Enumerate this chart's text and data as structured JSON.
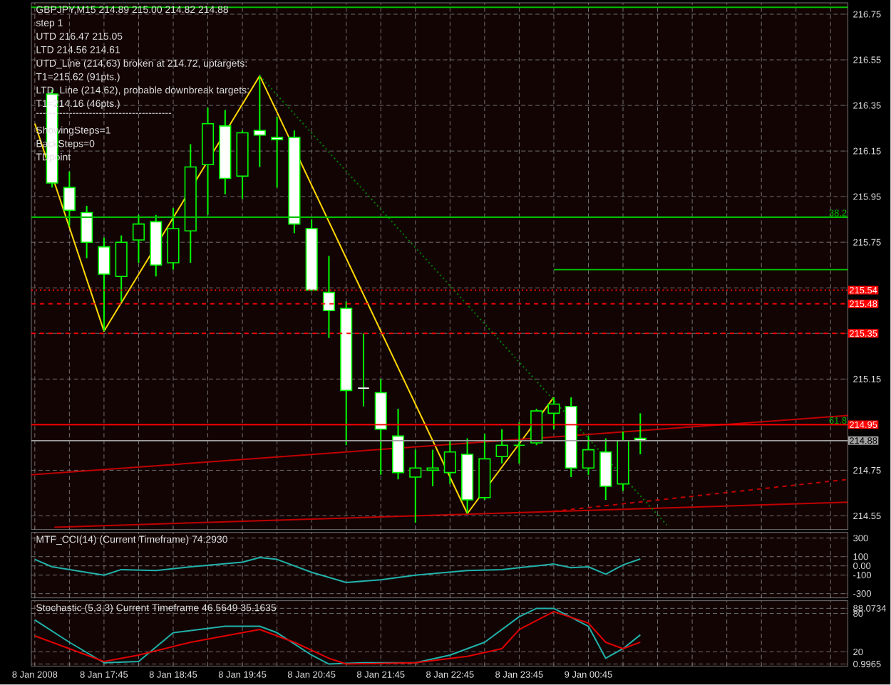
{
  "chart_data": [
    {
      "type": "candlestick",
      "title": "GBPJPY,M15  214.89 215.00 214.82 214.88",
      "annotations": [
        "step 1",
        "UTD 216.47  215.05",
        "LTD  214.56  214.61",
        "UTD_Line (214.63) broken at 214.72, uptargets:",
        "T1=215.62 (91pts.)",
        "LTD_Line (214.62), probable downbreak targets:",
        "T1=214.16 (46pts.)",
        "-----------------------------------------",
        "ShowingSteps=1",
        "BackSteps=0",
        "TDpoint",
        {
          "text": "38.2",
          "x": "2008-01-09T04:30",
          "y": 215.86
        },
        {
          "text": "61.8",
          "x": "2008-01-09T04:30",
          "y": 214.95
        }
      ],
      "x": [
        "2008-01-08T17:00",
        "2008-01-08T17:15",
        "2008-01-08T17:30",
        "2008-01-08T17:45",
        "2008-01-08T18:00",
        "2008-01-08T18:15",
        "2008-01-08T18:30",
        "2008-01-08T18:45",
        "2008-01-08T19:00",
        "2008-01-08T19:15",
        "2008-01-08T19:30",
        "2008-01-08T19:45",
        "2008-01-08T20:00",
        "2008-01-08T20:15",
        "2008-01-08T20:30",
        "2008-01-08T20:45",
        "2008-01-08T21:00",
        "2008-01-08T21:15",
        "2008-01-08T21:30",
        "2008-01-08T21:45",
        "2008-01-08T22:00",
        "2008-01-08T22:15",
        "2008-01-08T22:30",
        "2008-01-08T22:45",
        "2008-01-08T23:00",
        "2008-01-08T23:15",
        "2008-01-08T23:30",
        "2008-01-08T23:45",
        "2008-01-09T00:00",
        "2008-01-09T00:15",
        "2008-01-09T00:30",
        "2008-01-09T00:45",
        "2008-01-09T01:00",
        "2008-01-09T01:15",
        "2008-01-09T01:30"
      ],
      "ohlc": [
        [
          216.4,
          216.42,
          215.99,
          216.01
        ],
        [
          215.99,
          216.06,
          215.82,
          215.89
        ],
        [
          215.88,
          215.91,
          215.68,
          215.75
        ],
        [
          215.73,
          215.77,
          215.36,
          215.61
        ],
        [
          215.6,
          215.78,
          215.49,
          215.75
        ],
        [
          215.76,
          215.87,
          215.66,
          215.83
        ],
        [
          215.84,
          215.87,
          215.6,
          215.65
        ],
        [
          215.66,
          215.9,
          215.63,
          215.81
        ],
        [
          215.8,
          216.18,
          215.66,
          216.08
        ],
        [
          216.09,
          216.34,
          215.87,
          216.27
        ],
        [
          216.26,
          216.33,
          215.96,
          216.03
        ],
        [
          216.04,
          216.24,
          215.94,
          216.23
        ],
        [
          216.24,
          216.48,
          216.08,
          216.22
        ],
        [
          216.21,
          216.3,
          215.99,
          216.2
        ],
        [
          216.21,
          216.24,
          215.79,
          215.83
        ],
        [
          215.81,
          215.85,
          215.54,
          215.54
        ],
        [
          215.53,
          215.69,
          215.33,
          215.45
        ],
        [
          215.46,
          215.49,
          214.86,
          215.1
        ],
        [
          215.11,
          215.35,
          215.03,
          215.11
        ],
        [
          215.09,
          215.15,
          214.73,
          214.93
        ],
        [
          214.9,
          215.02,
          214.71,
          214.74
        ],
        [
          214.72,
          214.84,
          214.52,
          214.76
        ],
        [
          214.75,
          214.84,
          214.68,
          214.76
        ],
        [
          214.74,
          214.88,
          214.69,
          214.83
        ],
        [
          214.82,
          214.89,
          214.56,
          214.62
        ],
        [
          214.63,
          214.91,
          214.62,
          214.8
        ],
        [
          214.81,
          214.93,
          214.78,
          214.86
        ],
        [
          214.86,
          214.96,
          214.78,
          214.86
        ],
        [
          214.87,
          215.02,
          214.86,
          215.01
        ],
        [
          215.0,
          215.07,
          214.93,
          215.04
        ],
        [
          215.03,
          215.07,
          214.72,
          214.76
        ],
        [
          214.76,
          214.9,
          214.73,
          214.84
        ],
        [
          214.83,
          214.89,
          214.62,
          214.68
        ],
        [
          214.69,
          214.92,
          214.66,
          214.88
        ],
        [
          214.89,
          215.0,
          214.82,
          214.88
        ]
      ],
      "color": "#00ff00",
      "colors": [
        "#ffffff",
        "#ffffff",
        "#ffffff",
        "#ffffff",
        "#00ff00",
        "#00ff00",
        "#ffffff",
        "#00ff00",
        "#00ff00",
        "#00ff00",
        "#ffffff",
        "#00ff00",
        "#ffffff",
        "#ffffff",
        "#ffffff",
        "#ffffff",
        "#ffffff",
        "#ffffff",
        "#ffffff",
        "#ffffff",
        "#ffffff",
        "#00ff00",
        "#00ff00",
        "#00ff00",
        "#ffffff",
        "#00ff00",
        "#00ff00",
        "#00ff00",
        "#00ff00",
        "#00ff00",
        "#ffffff",
        "#00ff00",
        "#ffffff",
        "#00ff00",
        "#ffffff"
      ],
      "series": [
        {
          "type": "line",
          "color": "#ffd700",
          "x": [
            "2008-01-08T16:45",
            "2008-01-08T17:45",
            "2008-01-08T20:00",
            "2008-01-08T23:00",
            "2008-01-09T00:15"
          ],
          "values": [
            216.27,
            215.36,
            216.48,
            214.56,
            215.07
          ]
        },
        {
          "type": "line",
          "color": "#c00000",
          "x": [
            "2008-01-08T16:42",
            "2008-01-09T04:30"
          ],
          "values": [
            214.73,
            214.99
          ]
        },
        {
          "type": "line",
          "color": "#c00000",
          "x": [
            "2008-01-08T17:02",
            "2008-01-09T04:30"
          ],
          "values": [
            214.5,
            214.61
          ]
        },
        {
          "type": "line",
          "color": "#c00000",
          "line_style": "dashed",
          "x": [
            "2008-01-09T00:15",
            "2008-01-09T04:30"
          ],
          "values": [
            214.57,
            214.71
          ]
        },
        {
          "type": "line",
          "color": "#00c000",
          "x": [
            "2008-01-09T00:15",
            "2008-01-09T04:30"
          ],
          "values": [
            215.63,
            215.63
          ]
        },
        {
          "type": "line",
          "color": "#008000",
          "line_style": "dotted",
          "x": [
            "2008-01-08T20:00",
            "2008-01-09T01:53"
          ],
          "values": [
            216.48,
            214.51
          ]
        }
      ],
      "ref_lines": [
        {
          "axis": "y",
          "value": 216.78,
          "color": "#00c000",
          "line_style": "solid"
        },
        {
          "axis": "y",
          "value": 215.86,
          "color": "#00c000",
          "line_style": "solid"
        },
        {
          "axis": "y",
          "value": 215.54,
          "label": "215.54",
          "color": "#ff0000",
          "line_style": "dotted"
        },
        {
          "axis": "y",
          "value": 215.48,
          "label": "215.48",
          "color": "#ff0000",
          "line_style": "dashed"
        },
        {
          "axis": "y",
          "value": 215.35,
          "label": "215.35",
          "color": "#ff0000",
          "line_style": "dashed"
        },
        {
          "axis": "y",
          "value": 214.95,
          "label": "214.95",
          "color": "#ff0000",
          "line_style": "solid"
        },
        {
          "axis": "y",
          "value": 214.88,
          "label": "214.88",
          "color": "#a0a0a0",
          "line_style": "solid"
        }
      ],
      "xlim": [
        "2008-01-08T16:42",
        "2008-01-09T04:30"
      ],
      "xticks": [
        {
          "value": "2008-01-08T16:45",
          "label": null
        },
        {
          "value": "2008-01-08T17:15",
          "label": null
        },
        {
          "value": "2008-01-08T17:45",
          "label": null
        },
        {
          "value": "2008-01-08T18:15",
          "label": null
        },
        {
          "value": "2008-01-08T18:45",
          "label": null
        },
        {
          "value": "2008-01-08T19:15",
          "label": null
        },
        {
          "value": "2008-01-08T19:45",
          "label": null
        },
        {
          "value": "2008-01-08T20:15",
          "label": null
        },
        {
          "value": "2008-01-08T20:45",
          "label": null
        },
        {
          "value": "2008-01-08T21:15",
          "label": null
        },
        {
          "value": "2008-01-08T21:45",
          "label": null
        },
        {
          "value": "2008-01-08T22:15",
          "label": null
        },
        {
          "value": "2008-01-08T22:45",
          "label": null
        },
        {
          "value": "2008-01-08T23:15",
          "label": null
        },
        {
          "value": "2008-01-08T23:45",
          "label": null
        },
        {
          "value": "2008-01-09T00:15",
          "label": null
        },
        {
          "value": "2008-01-09T00:45",
          "label": null
        },
        {
          "value": "2008-01-09T01:15",
          "label": null
        },
        {
          "value": "2008-01-09T01:45",
          "label": null
        },
        {
          "value": "2008-01-09T02:15",
          "label": null
        },
        {
          "value": "2008-01-09T02:45",
          "label": null
        },
        {
          "value": "2008-01-09T03:15",
          "label": null
        },
        {
          "value": "2008-01-09T03:45",
          "label": null
        },
        {
          "value": "2008-01-09T04:15",
          "label": null
        }
      ],
      "ylim": [
        214.49,
        216.8
      ],
      "yticks": [
        214.55,
        214.75,
        {
          "value": 214.95,
          "label": null
        },
        215.15,
        {
          "value": 215.35,
          "label": null
        },
        {
          "value": 215.55,
          "label": null
        },
        215.75,
        215.95,
        216.15,
        216.35,
        216.55,
        216.75
      ],
      "grid": true,
      "tick_labels": "y"
    },
    {
      "type": "line",
      "title": "MTF_CCI(14) (Current Timeframe) 74.2930",
      "series": [
        {
          "color": "#20b2aa",
          "x": [
            "2008-01-08T16:45",
            "2008-01-08T17:00",
            "2008-01-08T17:45",
            "2008-01-08T18:00",
            "2008-01-08T18:30",
            "2008-01-08T19:00",
            "2008-01-08T19:45",
            "2008-01-08T20:00",
            "2008-01-08T20:15",
            "2008-01-08T20:45",
            "2008-01-08T21:15",
            "2008-01-08T21:45",
            "2008-01-08T22:15",
            "2008-01-08T23:00",
            "2008-01-08T23:30",
            "2008-01-08T23:45",
            "2008-01-09T00:15",
            "2008-01-09T00:30",
            "2008-01-09T00:45",
            "2008-01-09T01:00",
            "2008-01-09T01:15",
            "2008-01-09T01:30"
          ],
          "values": [
            70,
            -10,
            -100,
            -40,
            -50,
            -10,
            40,
            90,
            70,
            -70,
            -180,
            -150,
            -100,
            -50,
            -40,
            -20,
            20,
            -20,
            -10,
            -90,
            10,
            74.293
          ]
        }
      ],
      "xlim": [
        "2008-01-08T16:42",
        "2008-01-09T04:30"
      ],
      "xticks": [
        {
          "value": "2008-01-08T16:45",
          "label": null
        },
        {
          "value": "2008-01-08T17:15",
          "label": null
        },
        {
          "value": "2008-01-08T17:45",
          "label": null
        },
        {
          "value": "2008-01-08T18:15",
          "label": null
        },
        {
          "value": "2008-01-08T18:45",
          "label": null
        },
        {
          "value": "2008-01-08T19:15",
          "label": null
        },
        {
          "value": "2008-01-08T19:45",
          "label": null
        },
        {
          "value": "2008-01-08T20:15",
          "label": null
        },
        {
          "value": "2008-01-08T20:45",
          "label": null
        },
        {
          "value": "2008-01-08T21:15",
          "label": null
        },
        {
          "value": "2008-01-08T21:45",
          "label": null
        },
        {
          "value": "2008-01-08T22:15",
          "label": null
        },
        {
          "value": "2008-01-08T22:45",
          "label": null
        },
        {
          "value": "2008-01-08T23:15",
          "label": null
        },
        {
          "value": "2008-01-08T23:45",
          "label": null
        },
        {
          "value": "2008-01-09T00:15",
          "label": null
        },
        {
          "value": "2008-01-09T00:45",
          "label": null
        },
        {
          "value": "2008-01-09T01:15",
          "label": null
        },
        {
          "value": "2008-01-09T01:45",
          "label": null
        },
        {
          "value": "2008-01-09T02:15",
          "label": null
        },
        {
          "value": "2008-01-09T02:45",
          "label": null
        },
        {
          "value": "2008-01-09T03:15",
          "label": null
        },
        {
          "value": "2008-01-09T03:45",
          "label": null
        },
        {
          "value": "2008-01-09T04:15",
          "label": null
        }
      ],
      "ylim": [
        -346,
        362
      ],
      "yticks": [
        -300,
        -100,
        {
          "value": 0,
          "label": "0.00"
        },
        100,
        300
      ],
      "grid": true,
      "tick_labels": "y"
    },
    {
      "type": "line",
      "title": "Stochastic (5,3,3) Current Timeframe 46.5649 35.1635",
      "series": [
        {
          "color": "#20b2aa",
          "x": [
            "2008-01-08T16:45",
            "2008-01-08T17:15",
            "2008-01-08T17:45",
            "2008-01-08T18:15",
            "2008-01-08T18:45",
            "2008-01-08T19:30",
            "2008-01-08T20:00",
            "2008-01-08T20:15",
            "2008-01-08T20:45",
            "2008-01-08T21:00",
            "2008-01-08T21:30",
            "2008-01-08T22:15",
            "2008-01-08T22:45",
            "2008-01-08T23:15",
            "2008-01-08T23:45",
            "2008-01-09T00:00",
            "2008-01-09T00:15",
            "2008-01-09T00:45",
            "2008-01-09T01:00",
            "2008-01-09T01:15",
            "2008-01-09T01:30"
          ],
          "values": [
            70,
            35,
            3,
            5,
            50,
            60,
            60,
            50,
            15,
            1,
            3,
            3,
            15,
            35,
            75,
            88,
            88,
            60,
            10,
            25,
            46.5649
          ]
        },
        {
          "color": "#e00000",
          "x": [
            "2008-01-08T16:45",
            "2008-01-08T17:15",
            "2008-01-08T17:45",
            "2008-01-08T18:15",
            "2008-01-08T19:00",
            "2008-01-08T19:30",
            "2008-01-08T20:00",
            "2008-01-08T20:30",
            "2008-01-08T21:00",
            "2008-01-08T21:15",
            "2008-01-08T22:15",
            "2008-01-08T23:00",
            "2008-01-08T23:30",
            "2008-01-08T23:45",
            "2008-01-09T00:15",
            "2008-01-09T00:45",
            "2008-01-09T01:00",
            "2008-01-09T01:15",
            "2008-01-09T01:30"
          ],
          "values": [
            45,
            25,
            5,
            15,
            35,
            45,
            55,
            35,
            10,
            1,
            3,
            13,
            25,
            55,
            83,
            65,
            35,
            25,
            35.1635
          ]
        }
      ],
      "xlim": [
        "2008-01-08T16:42",
        "2008-01-09T04:30"
      ],
      "xticks": [
        {
          "value": "2008-01-08T16:45",
          "label": "8 Jan 2008"
        },
        {
          "value": "2008-01-08T17:15",
          "label": null
        },
        {
          "value": "2008-01-08T17:45",
          "label": "8 Jan 17:45"
        },
        {
          "value": "2008-01-08T18:15",
          "label": null
        },
        {
          "value": "2008-01-08T18:45",
          "label": "8 Jan 18:45"
        },
        {
          "value": "2008-01-08T19:15",
          "label": null
        },
        {
          "value": "2008-01-08T19:45",
          "label": "8 Jan 19:45"
        },
        {
          "value": "2008-01-08T20:15",
          "label": null
        },
        {
          "value": "2008-01-08T20:45",
          "label": "8 Jan 20:45"
        },
        {
          "value": "2008-01-08T21:15",
          "label": null
        },
        {
          "value": "2008-01-08T21:45",
          "label": "8 Jan 21:45"
        },
        {
          "value": "2008-01-08T22:15",
          "label": null
        },
        {
          "value": "2008-01-08T22:45",
          "label": "8 Jan 22:45"
        },
        {
          "value": "2008-01-08T23:15",
          "label": null
        },
        {
          "value": "2008-01-08T23:45",
          "label": "8 Jan 23:45"
        },
        {
          "value": "2008-01-09T00:15",
          "label": null
        },
        {
          "value": "2008-01-09T00:45",
          "label": "9 Jan 00:45"
        },
        {
          "value": "2008-01-09T01:15",
          "label": null
        },
        {
          "value": "2008-01-09T01:45",
          "label": null
        },
        {
          "value": "2008-01-09T02:15",
          "label": null
        },
        {
          "value": "2008-01-09T02:45",
          "label": null
        },
        {
          "value": "2008-01-09T03:15",
          "label": null
        },
        {
          "value": "2008-01-09T03:45",
          "label": null
        },
        {
          "value": "2008-01-09T04:15",
          "label": null
        }
      ],
      "ylim": [
        -2.4,
        100
      ],
      "yticks": [
        0.9965,
        20,
        80,
        88.0734
      ],
      "grid": true
    }
  ]
}
